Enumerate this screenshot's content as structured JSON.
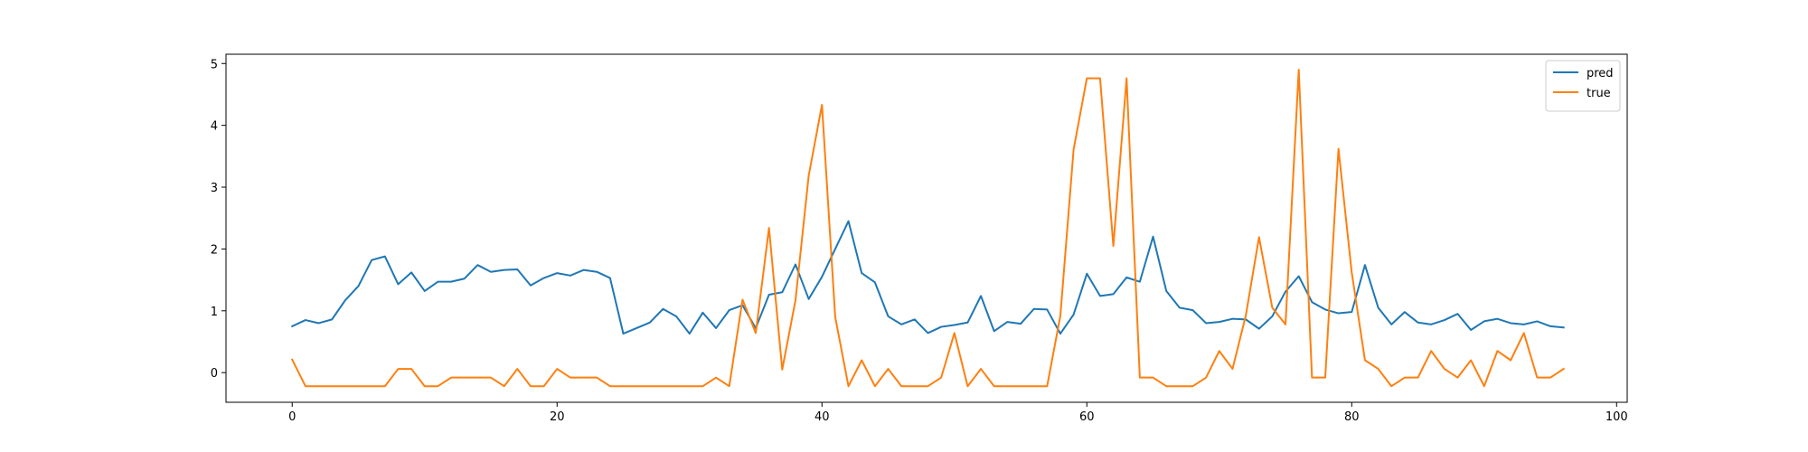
{
  "chart_data": {
    "type": "line",
    "x": [
      0,
      1,
      2,
      3,
      4,
      5,
      6,
      7,
      8,
      9,
      10,
      11,
      12,
      13,
      14,
      15,
      16,
      17,
      18,
      19,
      20,
      21,
      22,
      23,
      24,
      25,
      26,
      27,
      28,
      29,
      30,
      31,
      32,
      33,
      34,
      35,
      36,
      37,
      38,
      39,
      40,
      41,
      42,
      43,
      44,
      45,
      46,
      47,
      48,
      49,
      50,
      51,
      52,
      53,
      54,
      55,
      56,
      57,
      58,
      59,
      60,
      61,
      62,
      63,
      64,
      65,
      66,
      67,
      68,
      69,
      70,
      71,
      72,
      73,
      74,
      75,
      76,
      77,
      78,
      79,
      80,
      81,
      82,
      83,
      84,
      85,
      86,
      87,
      88,
      89,
      90,
      91,
      92,
      93,
      94,
      95,
      96
    ],
    "series": [
      {
        "name": "pred",
        "color": "#1f77b4",
        "values": [
          0.75,
          0.85,
          0.8,
          0.86,
          1.17,
          1.4,
          1.82,
          1.88,
          1.43,
          1.62,
          1.32,
          1.47,
          1.47,
          1.52,
          1.74,
          1.63,
          1.66,
          1.67,
          1.41,
          1.53,
          1.61,
          1.57,
          1.66,
          1.63,
          1.53,
          0.63,
          0.72,
          0.81,
          1.03,
          0.91,
          0.63,
          0.97,
          0.72,
          1.01,
          1.09,
          0.72,
          1.26,
          1.3,
          1.75,
          1.19,
          1.55,
          2.0,
          2.45,
          1.61,
          1.46,
          0.91,
          0.78,
          0.86,
          0.64,
          0.74,
          0.77,
          0.81,
          1.24,
          0.67,
          0.82,
          0.79,
          1.03,
          1.02,
          0.63,
          0.94,
          1.6,
          1.24,
          1.27,
          1.54,
          1.47,
          2.2,
          1.32,
          1.05,
          1.01,
          0.8,
          0.82,
          0.87,
          0.86,
          0.71,
          0.91,
          1.31,
          1.56,
          1.14,
          1.02,
          0.96,
          0.98,
          1.74,
          1.05,
          0.78,
          0.98,
          0.81,
          0.78,
          0.85,
          0.95,
          0.69,
          0.83,
          0.87,
          0.8,
          0.78,
          0.83,
          0.75,
          0.73
        ]
      },
      {
        "name": "true",
        "color": "#ff7f0e",
        "values": [
          0.21,
          -0.22,
          -0.22,
          -0.22,
          -0.22,
          -0.22,
          -0.22,
          -0.22,
          0.06,
          0.06,
          -0.22,
          -0.22,
          -0.08,
          -0.08,
          -0.08,
          -0.08,
          -0.22,
          0.06,
          -0.22,
          -0.22,
          0.06,
          -0.08,
          -0.08,
          -0.08,
          -0.22,
          -0.22,
          -0.22,
          -0.22,
          -0.22,
          -0.22,
          -0.22,
          -0.22,
          -0.08,
          -0.22,
          1.18,
          0.64,
          2.34,
          0.05,
          1.17,
          3.19,
          4.33,
          0.9,
          -0.22,
          0.2,
          -0.22,
          0.06,
          -0.22,
          -0.22,
          -0.22,
          -0.08,
          0.64,
          -0.22,
          0.06,
          -0.22,
          -0.22,
          -0.22,
          -0.22,
          -0.22,
          0.92,
          3.61,
          4.76,
          4.76,
          2.05,
          4.76,
          -0.08,
          -0.08,
          -0.22,
          -0.22,
          -0.22,
          -0.08,
          0.35,
          0.06,
          0.92,
          2.19,
          1.05,
          0.78,
          4.9,
          -0.08,
          -0.08,
          3.62,
          1.62,
          0.2,
          0.06,
          -0.22,
          -0.08,
          -0.08,
          0.35,
          0.06,
          -0.08,
          0.2,
          -0.22,
          0.35,
          0.2,
          0.64,
          -0.08,
          -0.08,
          0.06
        ]
      }
    ],
    "xlim": [
      -5,
      100.8
    ],
    "ylim": [
      -0.48,
      5.15
    ],
    "xticks": [
      0,
      20,
      40,
      60,
      80,
      100
    ],
    "yticks": [
      0,
      1,
      2,
      3,
      4,
      5
    ],
    "legend_position": "top-right",
    "grid": false,
    "title": "",
    "xlabel": "",
    "ylabel": ""
  }
}
